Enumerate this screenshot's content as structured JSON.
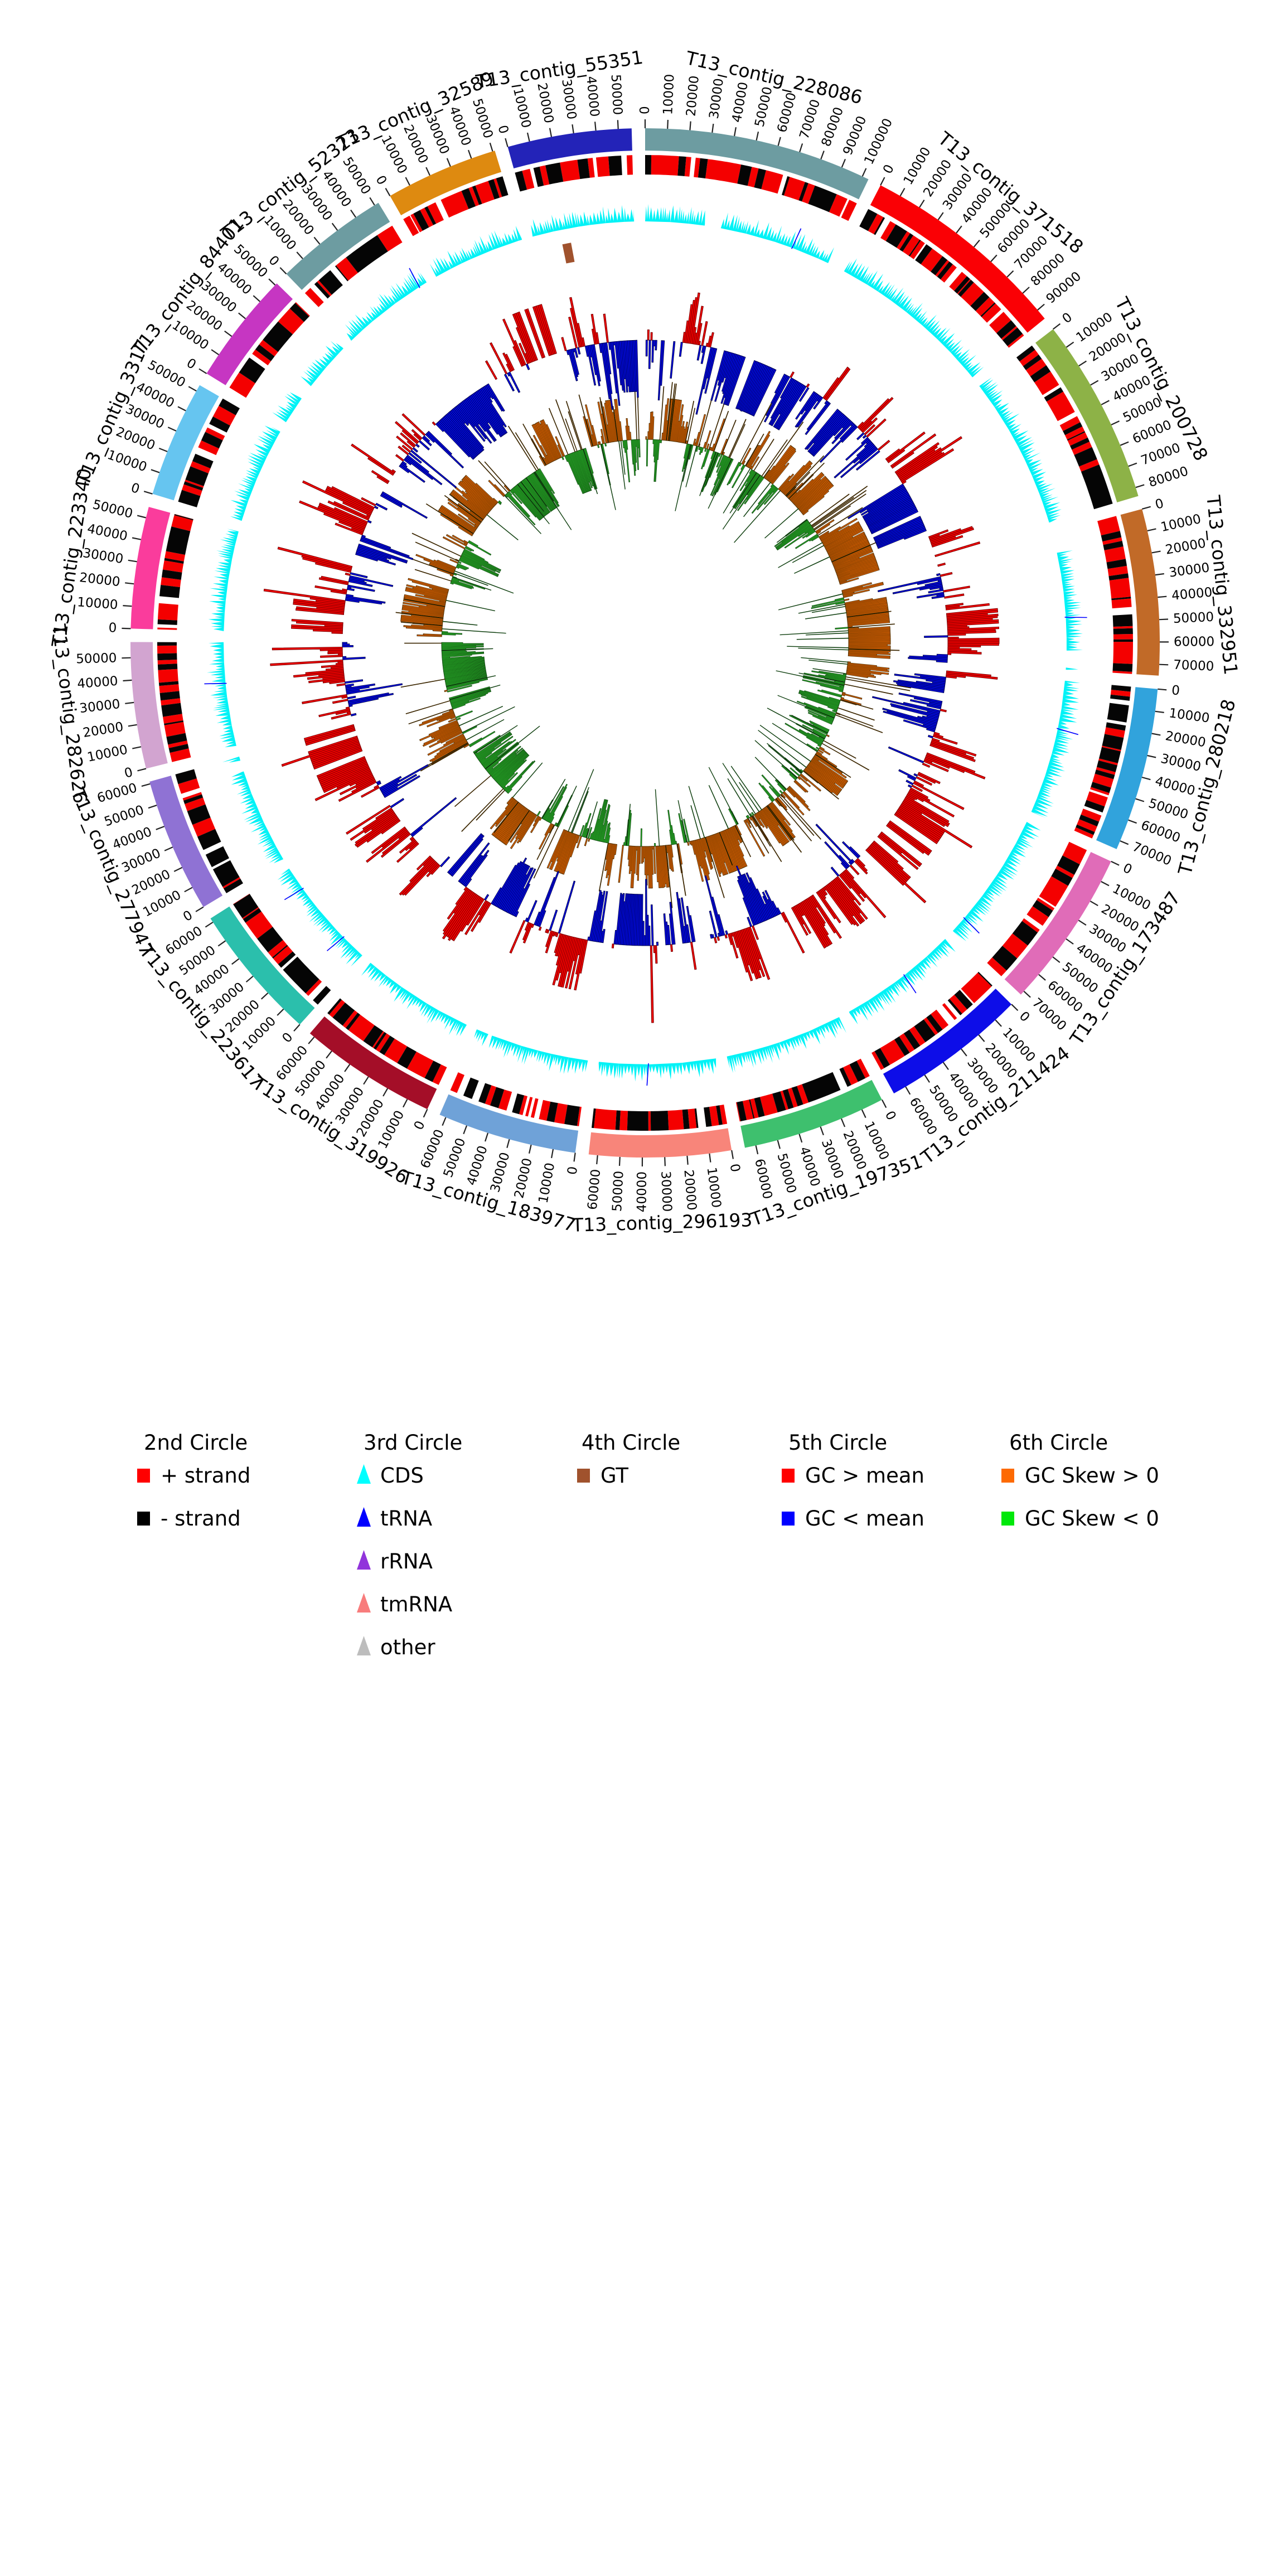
{
  "figure": {
    "background": "#ffffff"
  },
  "chart_data": {
    "type": "circular-genome-plot",
    "unit": "bp",
    "tick_interval": 10000,
    "circles": [
      {
        "id": "1st",
        "content": "contig ideogram with bp position ticks"
      },
      {
        "id": "2nd",
        "content": "+ / - strand blocks"
      },
      {
        "id": "3rd",
        "content": "features: CDS, tRNA, rRNA, tmRNA, other"
      },
      {
        "id": "4th",
        "content": "GT marks"
      },
      {
        "id": "5th",
        "content": "GC content vs mean (outward red, inward blue)"
      },
      {
        "id": "6th",
        "content": "GC skew (outward orange, inward green)"
      }
    ],
    "contigs": [
      {
        "name": "T13_contig_228086",
        "length": 103000,
        "tick_max": 100000,
        "color": "#6D9CA1"
      },
      {
        "name": "T13_contig_371518",
        "length": 95000,
        "tick_max": 90000,
        "color": "#FA0005"
      },
      {
        "name": "T13_contig_200728",
        "length": 84000,
        "tick_max": 80000,
        "color": "#8DB247"
      },
      {
        "name": "T13_contig_332951",
        "length": 75000,
        "tick_max": 70000,
        "color": "#C16A28"
      },
      {
        "name": "T13_contig_280218",
        "length": 74000,
        "tick_max": 70000,
        "color": "#31A3DC"
      },
      {
        "name": "T13_contig_173487",
        "length": 72000,
        "tick_max": 70000,
        "color": "#E06CB8"
      },
      {
        "name": "T13_contig_211424",
        "length": 66000,
        "tick_max": 60000,
        "color": "#0D0DE8"
      },
      {
        "name": "T13_contig_197351",
        "length": 65000,
        "tick_max": 60000,
        "color": "#3EC06E"
      },
      {
        "name": "T13_contig_296193",
        "length": 64000,
        "tick_max": 60000,
        "color": "#F8857A"
      },
      {
        "name": "T13_contig_183977",
        "length": 63000,
        "tick_max": 60000,
        "color": "#6FA2D8"
      },
      {
        "name": "T13_contig_319926",
        "length": 62500,
        "tick_max": 60000,
        "color": "#A40E28"
      },
      {
        "name": "T13_contig_223617",
        "length": 62000,
        "tick_max": 60000,
        "color": "#2BBFAC"
      },
      {
        "name": "T13_contig_277947",
        "length": 61000,
        "tick_max": 60000,
        "color": "#8F72D4"
      },
      {
        "name": "T13_contig_282626",
        "length": 57000,
        "tick_max": 50000,
        "color": "#D2A4D0"
      },
      {
        "name": "T13_contig_223340",
        "length": 55000,
        "tick_max": 50000,
        "color": "#FA3C9C"
      },
      {
        "name": "T13_contig_3317",
        "length": 53000,
        "tick_max": 50000,
        "color": "#66C5F0"
      },
      {
        "name": "T13_contig_84401",
        "length": 51000,
        "tick_max": 50000,
        "color": "#C636C2"
      },
      {
        "name": "T13_contig_52323",
        "length": 52000,
        "tick_max": 50000,
        "color": "#6D9CA1"
      },
      {
        "name": "T13_contig_32589",
        "length": 51000,
        "tick_max": 50000,
        "color": "#DE8A10"
      },
      {
        "name": "T13_contig_55351",
        "length": 56000,
        "tick_max": 50000,
        "color": "#2323B8"
      }
    ],
    "gt_marks": [
      {
        "contig": "T13_contig_55351",
        "position_bp": 15000
      }
    ],
    "strand_colors": {
      "plus": "#F40000",
      "minus": "#050505"
    },
    "feature_colors": {
      "CDS": "#00F2F6",
      "tRNA": "#0000FF",
      "rRNA": "#9134DB",
      "tmRNA": "#F87C7C",
      "other": "#BDBDBD"
    },
    "gt_color": "#A0522D",
    "gc_colors": {
      "above": "#F30000",
      "below": "#0008F0"
    },
    "skew_colors": {
      "positive": "#FD6A02",
      "negative": "#2FD32F"
    }
  },
  "legend": {
    "columns": [
      {
        "title": "2nd Circle",
        "items": [
          {
            "label": "+ strand",
            "color": "#FF0000",
            "marker": "square"
          },
          {
            "label": "- strand",
            "color": "#000000",
            "marker": "square"
          }
        ]
      },
      {
        "title": "3rd Circle",
        "items": [
          {
            "label": "CDS",
            "color": "#00FFFF",
            "marker": "triangle"
          },
          {
            "label": "tRNA",
            "color": "#0000FF",
            "marker": "triangle"
          },
          {
            "label": "rRNA",
            "color": "#9134DB",
            "marker": "triangle"
          },
          {
            "label": "tmRNA",
            "color": "#F87C7C",
            "marker": "triangle"
          },
          {
            "label": "other",
            "color": "#BDBDBD",
            "marker": "triangle"
          }
        ]
      },
      {
        "title": "4th Circle",
        "items": [
          {
            "label": "GT",
            "color": "#A0522D",
            "marker": "square"
          }
        ]
      },
      {
        "title": "5th Circle",
        "items": [
          {
            "label": "GC > mean",
            "color": "#FF0000",
            "marker": "square"
          },
          {
            "label": "GC < mean",
            "color": "#0000FF",
            "marker": "square"
          }
        ]
      },
      {
        "title": "6th Circle",
        "items": [
          {
            "label": "GC Skew > 0",
            "color": "#FD6A02",
            "marker": "square"
          },
          {
            "label": "GC Skew < 0",
            "color": "#00E80B",
            "marker": "square"
          }
        ]
      }
    ]
  }
}
